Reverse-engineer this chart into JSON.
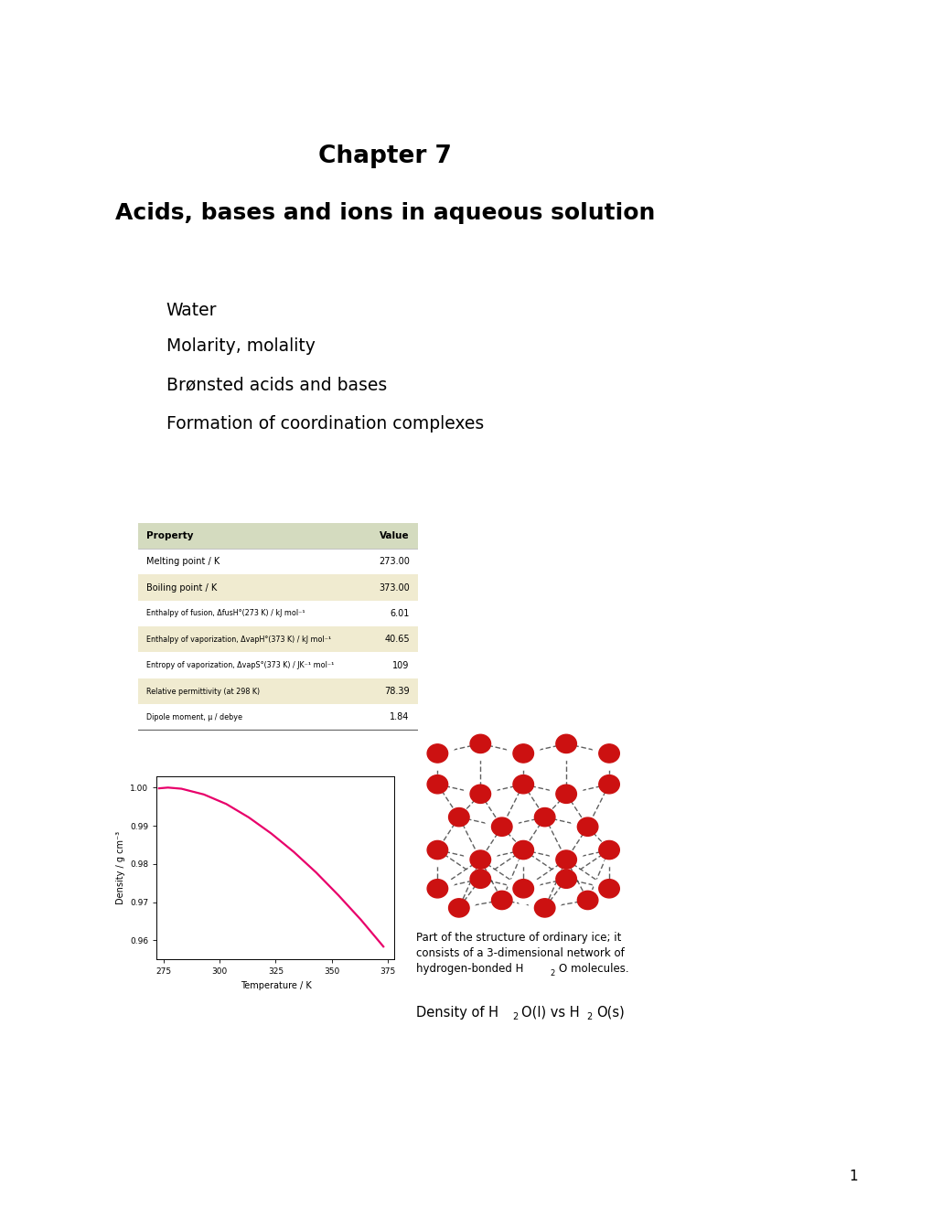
{
  "title_line1": "Chapter 7",
  "title_line2": "Acids, bases and ions in aqueous solution",
  "title_bg": "#c8ffc8",
  "bullets_bg": "#bbf0ff",
  "bullets": [
    "Water",
    "Molarity, molality",
    "Brønsted acids and bases",
    "Formation of coordination complexes"
  ],
  "table_header_bg": "#d4dbbf",
  "table_alt_bg": "#f0ebd0",
  "table_norm_bg": "#ffffff",
  "table_properties": [
    "Melting point / K",
    "Boiling point / K",
    "Enthalpy of fusion, ΔfusH°(273 K) / kJ mol⁻¹",
    "Enthalpy of vaporization, ΔvapH°(373 K) / kJ mol⁻¹",
    "Entropy of vaporization, ΔvapS°(373 K) / JK⁻¹ mol⁻¹",
    "Relative permittivity (at 298 K)",
    "Dipole moment, μ / debye"
  ],
  "table_values": [
    "273.00",
    "373.00",
    "6.01",
    "40.65",
    "109",
    "78.39",
    "1.84"
  ],
  "plot_temp": [
    273,
    277,
    283,
    293,
    303,
    313,
    323,
    333,
    343,
    353,
    363,
    373
  ],
  "plot_density": [
    0.9998,
    1.0,
    0.9997,
    0.9982,
    0.9957,
    0.9922,
    0.988,
    0.9832,
    0.9778,
    0.9718,
    0.9654,
    0.9584
  ],
  "plot_color": "#e8006a",
  "page_bg": "#ffffff",
  "page_number": "1",
  "ice_caption_1": "Part of the structure of ordinary ice; it",
  "ice_caption_2": "consists of a 3-dimensional network of",
  "ice_caption_3": "hydrogen-bonded H",
  "ice_caption_3b": "2",
  "ice_caption_3c": "O molecules.",
  "density_cap_1": "Density of H",
  "density_cap_2": "2",
  "density_cap_3": "O(l) vs H",
  "density_cap_4": "2",
  "density_cap_5": "O(s)"
}
